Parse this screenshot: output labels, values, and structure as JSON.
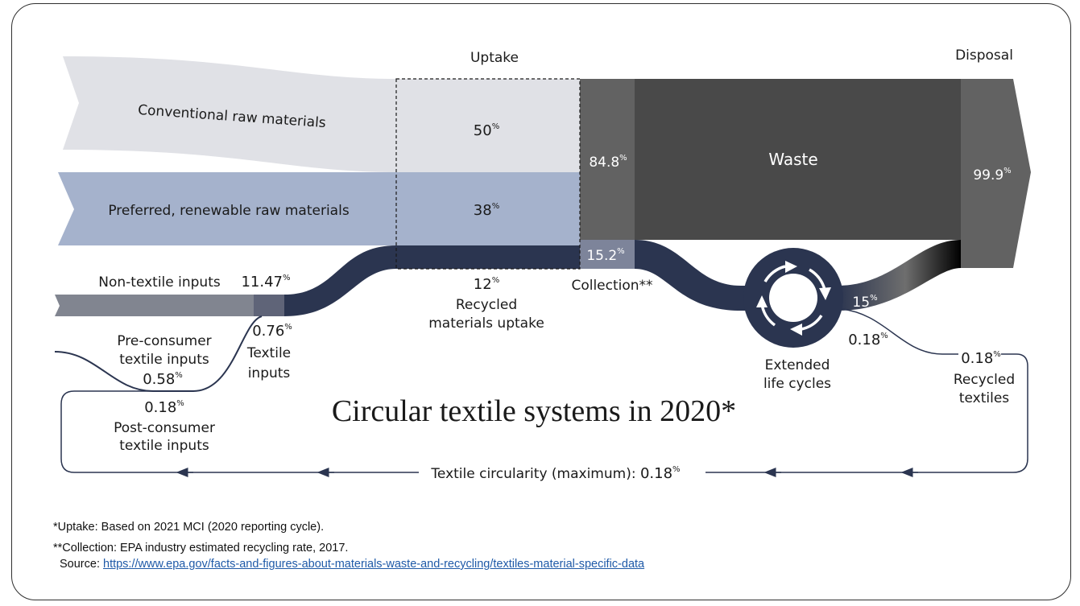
{
  "header": {
    "uptake": "Uptake",
    "disposal": "Disposal"
  },
  "title": "Circular textile systems in 2020*",
  "flows": {
    "conventional_label": "Conventional raw materials",
    "conventional_value": "50",
    "preferred_label": "Preferred, renewable raw materials",
    "preferred_value": "38",
    "non_textile_label": "Non-textile inputs",
    "non_textile_value": "11.47",
    "textile_inputs_value": "0.76",
    "textile_inputs_label_1": "Textile",
    "textile_inputs_label_2": "inputs",
    "pre_consumer_label_1": "Pre-consumer",
    "pre_consumer_label_2": "textile inputs",
    "pre_consumer_value": "0.58",
    "post_consumer_value": "0.18",
    "post_consumer_label_1": "Post-consumer",
    "post_consumer_label_2": "textile inputs",
    "recycled_uptake_value": "12",
    "recycled_uptake_label_1": "Recycled",
    "recycled_uptake_label_2": "materials uptake",
    "waste_value": "84.8",
    "waste_label": "Waste",
    "disposal_value": "99.9",
    "collection_value": "15.2",
    "collection_label": "Collection**",
    "extended_label_1": "Extended",
    "extended_label_2": "life cycles",
    "extended_value": "15",
    "extended_out_value": "0.18",
    "recycled_textiles_value": "0.18",
    "recycled_textiles_label_1": "Recycled",
    "recycled_textiles_label_2": "textiles",
    "circularity_label": "Textile circularity (maximum): ",
    "circularity_value": "0.18",
    "percent_sign": "%"
  },
  "footnotes": {
    "uptake_note": "*Uptake: Based on 2021 MCI (2020 reporting cycle).",
    "collection_note": "**Collection: EPA industry estimated recycling rate, 2017.",
    "source_label": "Source: ",
    "source_url": "https://www.epa.gov/facts-and-figures-about-materials-waste-and-recycling/textiles-material-specific-data"
  },
  "colors": {
    "conventional": "#e0e1e6",
    "preferred": "#a5b2cc",
    "navy": "#2b3550",
    "dark_grey": "#494949",
    "mid_grey": "#626262",
    "non_textile": "#818590",
    "collection": "#7d849a"
  }
}
